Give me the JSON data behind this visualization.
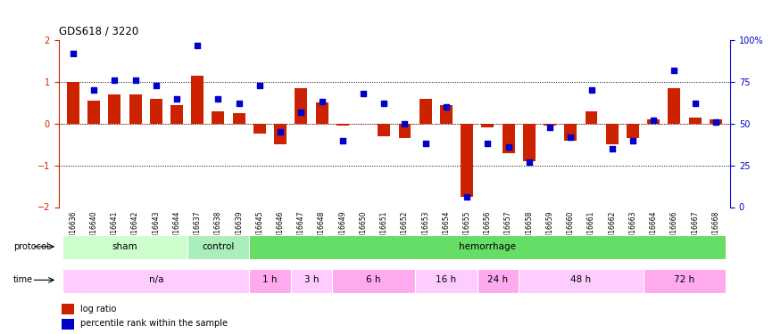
{
  "title": "GDS618 / 3220",
  "samples": [
    "GSM16636",
    "GSM16640",
    "GSM16641",
    "GSM16642",
    "GSM16643",
    "GSM16644",
    "GSM16637",
    "GSM16638",
    "GSM16639",
    "GSM16645",
    "GSM16646",
    "GSM16647",
    "GSM16648",
    "GSM16649",
    "GSM16650",
    "GSM16651",
    "GSM16652",
    "GSM16653",
    "GSM16654",
    "GSM16655",
    "GSM16656",
    "GSM16657",
    "GSM16658",
    "GSM16659",
    "GSM16660",
    "GSM16661",
    "GSM16662",
    "GSM16663",
    "GSM16664",
    "GSM16666",
    "GSM16667",
    "GSM16668"
  ],
  "log_ratio": [
    1.0,
    0.55,
    0.7,
    0.7,
    0.6,
    0.45,
    1.15,
    0.3,
    0.25,
    -0.25,
    -0.5,
    0.85,
    0.5,
    -0.05,
    0.0,
    -0.3,
    -0.35,
    0.6,
    0.45,
    -1.75,
    -0.1,
    -0.7,
    -0.9,
    -0.05,
    -0.4,
    0.3,
    -0.5,
    -0.35,
    0.1,
    0.85,
    0.15,
    0.1
  ],
  "pct_rank": [
    92,
    70,
    76,
    76,
    73,
    65,
    97,
    65,
    62,
    73,
    45,
    57,
    63,
    40,
    68,
    62,
    50,
    38,
    60,
    6,
    38,
    36,
    27,
    48,
    42,
    70,
    35,
    40,
    52,
    82,
    62,
    51
  ],
  "bar_color": "#cc2200",
  "dot_color": "#0000cc",
  "ylim": [
    -2,
    2
  ],
  "yticks_left": [
    -2,
    -1,
    0,
    1,
    2
  ],
  "yticks_right": [
    0,
    25,
    50,
    75,
    100
  ],
  "dotted_lines": [
    -1,
    0,
    1
  ],
  "protocol_labels": [
    "sham",
    "control",
    "hemorrhage"
  ],
  "protocol_ranges": [
    [
      0,
      5
    ],
    [
      6,
      8
    ],
    [
      9,
      31
    ]
  ],
  "protocol_colors": [
    "#ccffcc",
    "#aaeebb",
    "#66dd66"
  ],
  "time_labels": [
    "n/a",
    "1 h",
    "3 h",
    "6 h",
    "16 h",
    "24 h",
    "48 h",
    "72 h"
  ],
  "time_ranges": [
    [
      0,
      8
    ],
    [
      9,
      10
    ],
    [
      11,
      12
    ],
    [
      13,
      16
    ],
    [
      17,
      19
    ],
    [
      20,
      21
    ],
    [
      22,
      27
    ],
    [
      28,
      31
    ]
  ],
  "time_colors": [
    "#ffccff",
    "#ffaaee",
    "#ffccff",
    "#ffaaee",
    "#ffccff",
    "#ffaaee",
    "#ffccff",
    "#ffaaee"
  ]
}
